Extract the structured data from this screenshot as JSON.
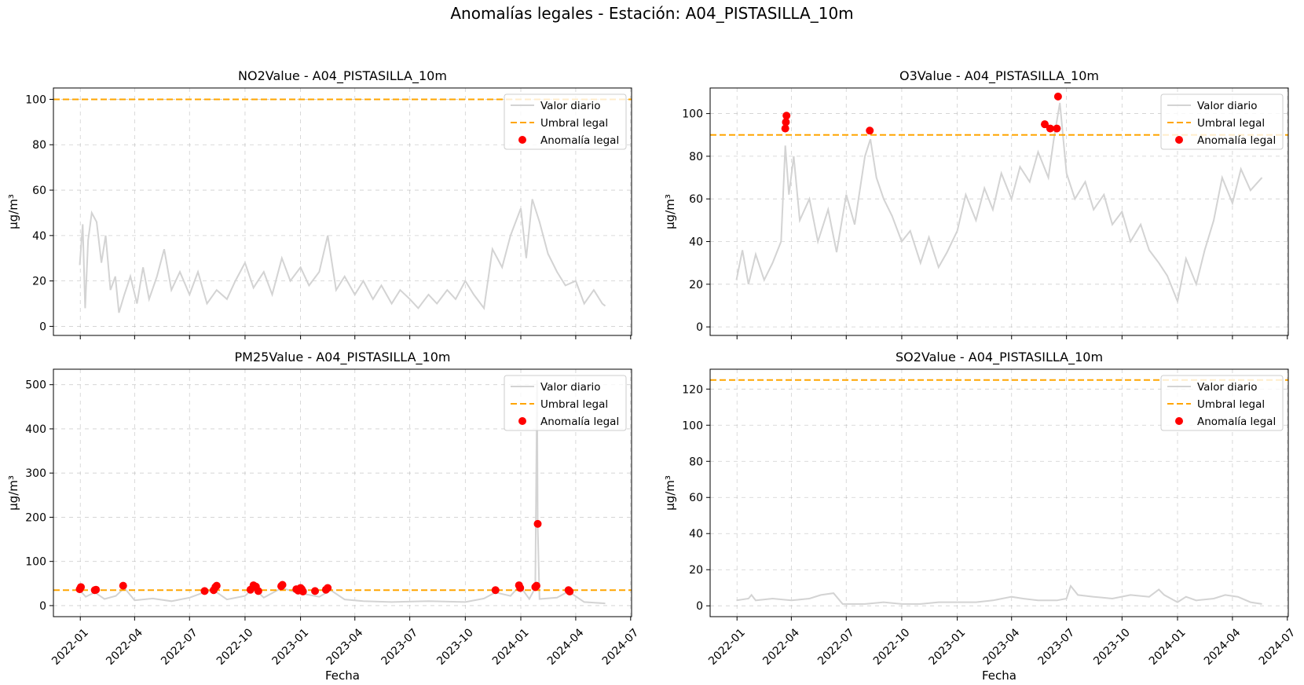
{
  "suptitle": "Anomalías legales - Estación: A04_PISTASILLA_10m",
  "colors": {
    "daily": "#d3d3d3",
    "threshold": "#ffa500",
    "anomaly": "#ff0000"
  },
  "legend": {
    "daily": "Valor diario",
    "threshold": "Umbral legal",
    "anomaly": "Anomalía legal"
  },
  "chart_data": [
    {
      "type": "line",
      "title": "NO2Value - A04_PISTASILLA_10m",
      "xlabel": "",
      "ylabel": "µg/m³",
      "x_range": [
        "2021-12-31",
        "2024-05-20"
      ],
      "ylim": [
        -4,
        105
      ],
      "yticks": [
        0,
        20,
        40,
        60,
        80,
        100
      ],
      "xticks": [
        "2022-01",
        "2022-04",
        "2022-07",
        "2022-10",
        "2023-01",
        "2023-04",
        "2023-07",
        "2023-10",
        "2024-01",
        "2024-04",
        "2024-07"
      ],
      "show_xtick_labels": false,
      "threshold": 100,
      "legend_position": "top-right",
      "grid": true,
      "series_daily": [
        [
          "2021-12-31",
          27
        ],
        [
          "2022-01-05",
          45
        ],
        [
          "2022-01-09",
          8
        ],
        [
          "2022-01-14",
          38
        ],
        [
          "2022-01-20",
          50
        ],
        [
          "2022-01-28",
          46
        ],
        [
          "2022-02-05",
          28
        ],
        [
          "2022-02-12",
          40
        ],
        [
          "2022-02-20",
          16
        ],
        [
          "2022-02-28",
          22
        ],
        [
          "2022-03-06",
          6
        ],
        [
          "2022-03-15",
          14
        ],
        [
          "2022-03-25",
          22
        ],
        [
          "2022-04-05",
          10
        ],
        [
          "2022-04-15",
          26
        ],
        [
          "2022-04-25",
          12
        ],
        [
          "2022-05-08",
          22
        ],
        [
          "2022-05-20",
          34
        ],
        [
          "2022-06-01",
          16
        ],
        [
          "2022-06-15",
          24
        ],
        [
          "2022-07-01",
          14
        ],
        [
          "2022-07-15",
          24
        ],
        [
          "2022-07-30",
          10
        ],
        [
          "2022-08-15",
          16
        ],
        [
          "2022-09-01",
          12
        ],
        [
          "2022-09-15",
          20
        ],
        [
          "2022-10-01",
          28
        ],
        [
          "2022-10-15",
          17
        ],
        [
          "2022-11-01",
          24
        ],
        [
          "2022-11-15",
          14
        ],
        [
          "2022-12-01",
          30
        ],
        [
          "2022-12-15",
          20
        ],
        [
          "2023-01-01",
          26
        ],
        [
          "2023-01-15",
          18
        ],
        [
          "2023-02-01",
          24
        ],
        [
          "2023-02-15",
          40
        ],
        [
          "2023-03-01",
          16
        ],
        [
          "2023-03-15",
          22
        ],
        [
          "2023-04-01",
          14
        ],
        [
          "2023-04-15",
          20
        ],
        [
          "2023-05-01",
          12
        ],
        [
          "2023-05-15",
          18
        ],
        [
          "2023-06-01",
          10
        ],
        [
          "2023-06-15",
          16
        ],
        [
          "2023-07-01",
          12
        ],
        [
          "2023-07-15",
          8
        ],
        [
          "2023-08-01",
          14
        ],
        [
          "2023-08-15",
          10
        ],
        [
          "2023-09-01",
          16
        ],
        [
          "2023-09-15",
          12
        ],
        [
          "2023-10-01",
          20
        ],
        [
          "2023-10-15",
          14
        ],
        [
          "2023-11-01",
          8
        ],
        [
          "2023-11-15",
          34
        ],
        [
          "2023-12-01",
          26
        ],
        [
          "2023-12-15",
          40
        ],
        [
          "2024-01-01",
          52
        ],
        [
          "2024-01-10",
          30
        ],
        [
          "2024-01-20",
          56
        ],
        [
          "2024-02-01",
          46
        ],
        [
          "2024-02-15",
          32
        ],
        [
          "2024-03-01",
          24
        ],
        [
          "2024-03-15",
          18
        ],
        [
          "2024-04-01",
          20
        ],
        [
          "2024-04-15",
          10
        ],
        [
          "2024-05-01",
          16
        ],
        [
          "2024-05-15",
          10
        ],
        [
          "2024-05-20",
          9
        ]
      ],
      "anomalies": []
    },
    {
      "type": "line",
      "title": "O3Value - A04_PISTASILLA_10m",
      "xlabel": "",
      "ylabel": "µg/m³",
      "x_range": [
        "2021-12-31",
        "2024-05-20"
      ],
      "ylim": [
        -4,
        112
      ],
      "yticks": [
        0,
        20,
        40,
        60,
        80,
        100
      ],
      "xticks": [
        "2022-01",
        "2022-04",
        "2022-07",
        "2022-10",
        "2023-01",
        "2023-04",
        "2023-07",
        "2023-10",
        "2024-01",
        "2024-04",
        "2024-07"
      ],
      "show_xtick_labels": false,
      "threshold": 90,
      "legend_position": "top-right",
      "grid": true,
      "series_daily": [
        [
          "2021-12-31",
          22
        ],
        [
          "2022-01-10",
          36
        ],
        [
          "2022-01-20",
          20
        ],
        [
          "2022-02-01",
          34
        ],
        [
          "2022-02-15",
          22
        ],
        [
          "2022-03-01",
          30
        ],
        [
          "2022-03-15",
          40
        ],
        [
          "2022-03-22",
          85
        ],
        [
          "2022-03-28",
          62
        ],
        [
          "2022-04-05",
          80
        ],
        [
          "2022-04-15",
          50
        ],
        [
          "2022-05-01",
          60
        ],
        [
          "2022-05-15",
          40
        ],
        [
          "2022-06-01",
          55
        ],
        [
          "2022-06-15",
          35
        ],
        [
          "2022-07-01",
          62
        ],
        [
          "2022-07-15",
          48
        ],
        [
          "2022-08-01",
          80
        ],
        [
          "2022-08-10",
          88
        ],
        [
          "2022-08-20",
          70
        ],
        [
          "2022-09-01",
          60
        ],
        [
          "2022-09-15",
          52
        ],
        [
          "2022-10-01",
          40
        ],
        [
          "2022-10-15",
          45
        ],
        [
          "2022-11-01",
          30
        ],
        [
          "2022-11-15",
          42
        ],
        [
          "2022-12-01",
          28
        ],
        [
          "2022-12-15",
          35
        ],
        [
          "2023-01-01",
          45
        ],
        [
          "2023-01-15",
          62
        ],
        [
          "2023-02-01",
          50
        ],
        [
          "2023-02-15",
          65
        ],
        [
          "2023-03-01",
          55
        ],
        [
          "2023-03-15",
          72
        ],
        [
          "2023-04-01",
          60
        ],
        [
          "2023-04-15",
          75
        ],
        [
          "2023-05-01",
          68
        ],
        [
          "2023-05-15",
          82
        ],
        [
          "2023-06-01",
          70
        ],
        [
          "2023-06-10",
          88
        ],
        [
          "2023-06-20",
          105
        ],
        [
          "2023-07-01",
          72
        ],
        [
          "2023-07-15",
          60
        ],
        [
          "2023-08-01",
          68
        ],
        [
          "2023-08-15",
          55
        ],
        [
          "2023-09-01",
          62
        ],
        [
          "2023-09-15",
          48
        ],
        [
          "2023-10-01",
          54
        ],
        [
          "2023-10-15",
          40
        ],
        [
          "2023-11-01",
          48
        ],
        [
          "2023-11-15",
          36
        ],
        [
          "2023-12-01",
          30
        ],
        [
          "2023-12-15",
          24
        ],
        [
          "2024-01-01",
          12
        ],
        [
          "2024-01-15",
          32
        ],
        [
          "2024-02-01",
          20
        ],
        [
          "2024-02-15",
          36
        ],
        [
          "2024-03-01",
          50
        ],
        [
          "2024-03-15",
          70
        ],
        [
          "2024-04-01",
          58
        ],
        [
          "2024-04-15",
          74
        ],
        [
          "2024-05-01",
          64
        ],
        [
          "2024-05-20",
          70
        ]
      ],
      "anomalies": [
        [
          "2022-03-22",
          93
        ],
        [
          "2022-03-23",
          96
        ],
        [
          "2022-03-24",
          99
        ],
        [
          "2022-08-09",
          92
        ],
        [
          "2023-05-26",
          95
        ],
        [
          "2023-06-04",
          93
        ],
        [
          "2023-06-15",
          93
        ],
        [
          "2023-06-17",
          108
        ]
      ]
    },
    {
      "type": "line",
      "title": "PM25Value - A04_PISTASILLA_10m",
      "xlabel": "Fecha",
      "ylabel": "µg/m³",
      "x_range": [
        "2021-12-31",
        "2024-05-20"
      ],
      "ylim": [
        -25,
        535
      ],
      "yticks": [
        0,
        100,
        200,
        300,
        400,
        500
      ],
      "xticks": [
        "2022-01",
        "2022-04",
        "2022-07",
        "2022-10",
        "2023-01",
        "2023-04",
        "2023-07",
        "2023-10",
        "2024-01",
        "2024-04",
        "2024-07"
      ],
      "show_xtick_labels": true,
      "threshold": 35,
      "legend_position": "top-right",
      "grid": true,
      "series_daily": [
        [
          "2021-12-31",
          35
        ],
        [
          "2022-01-10",
          20
        ],
        [
          "2022-01-25",
          30
        ],
        [
          "2022-02-10",
          15
        ],
        [
          "2022-03-01",
          22
        ],
        [
          "2022-03-15",
          40
        ],
        [
          "2022-04-01",
          12
        ],
        [
          "2022-05-01",
          16
        ],
        [
          "2022-06-01",
          10
        ],
        [
          "2022-07-01",
          18
        ],
        [
          "2022-07-25",
          30
        ],
        [
          "2022-08-10",
          35
        ],
        [
          "2022-09-01",
          14
        ],
        [
          "2022-10-01",
          22
        ],
        [
          "2022-10-15",
          40
        ],
        [
          "2022-11-01",
          18
        ],
        [
          "2022-12-01",
          40
        ],
        [
          "2022-12-20",
          32
        ],
        [
          "2023-01-01",
          28
        ],
        [
          "2023-02-01",
          20
        ],
        [
          "2023-02-20",
          35
        ],
        [
          "2023-03-15",
          14
        ],
        [
          "2023-04-15",
          10
        ],
        [
          "2023-06-01",
          8
        ],
        [
          "2023-08-01",
          10
        ],
        [
          "2023-10-01",
          8
        ],
        [
          "2023-11-01",
          16
        ],
        [
          "2023-11-20",
          30
        ],
        [
          "2023-12-15",
          22
        ],
        [
          "2023-12-30",
          45
        ],
        [
          "2024-01-15",
          15
        ],
        [
          "2024-01-25",
          40
        ],
        [
          "2024-01-28",
          510
        ],
        [
          "2024-01-29",
          180
        ],
        [
          "2024-02-01",
          15
        ],
        [
          "2024-03-01",
          18
        ],
        [
          "2024-03-20",
          32
        ],
        [
          "2024-04-15",
          8
        ],
        [
          "2024-05-20",
          5
        ]
      ],
      "anomalies": [
        [
          "2021-12-31",
          37
        ],
        [
          "2022-01-02",
          42
        ],
        [
          "2022-01-25",
          35
        ],
        [
          "2022-01-27",
          36
        ],
        [
          "2022-03-13",
          45
        ],
        [
          "2022-07-26",
          33
        ],
        [
          "2022-08-10",
          35
        ],
        [
          "2022-08-13",
          42
        ],
        [
          "2022-08-15",
          45
        ],
        [
          "2022-10-10",
          36
        ],
        [
          "2022-10-15",
          46
        ],
        [
          "2022-10-19",
          43
        ],
        [
          "2022-10-23",
          33
        ],
        [
          "2022-11-30",
          44
        ],
        [
          "2022-12-02",
          47
        ],
        [
          "2022-12-25",
          37
        ],
        [
          "2022-12-28",
          34
        ],
        [
          "2023-01-01",
          40
        ],
        [
          "2023-01-03",
          37
        ],
        [
          "2023-01-05",
          32
        ],
        [
          "2023-01-25",
          33
        ],
        [
          "2023-02-12",
          36
        ],
        [
          "2023-02-15",
          40
        ],
        [
          "2023-11-20",
          35
        ],
        [
          "2023-12-29",
          46
        ],
        [
          "2023-12-31",
          40
        ],
        [
          "2024-01-25",
          42
        ],
        [
          "2024-01-27",
          45
        ],
        [
          "2024-01-29",
          185
        ],
        [
          "2024-03-20",
          35
        ],
        [
          "2024-03-22",
          32
        ]
      ]
    },
    {
      "type": "line",
      "title": "SO2Value - A04_PISTASILLA_10m",
      "xlabel": "Fecha",
      "ylabel": "µg/m³",
      "x_range": [
        "2021-12-31",
        "2024-05-20"
      ],
      "ylim": [
        -6,
        131
      ],
      "yticks": [
        0,
        20,
        40,
        60,
        80,
        100,
        120
      ],
      "xticks": [
        "2022-01",
        "2022-04",
        "2022-07",
        "2022-10",
        "2023-01",
        "2023-04",
        "2023-07",
        "2023-10",
        "2024-01",
        "2024-04",
        "2024-07"
      ],
      "show_xtick_labels": true,
      "threshold": 125,
      "legend_position": "top-right",
      "grid": true,
      "series_daily": [
        [
          "2021-12-31",
          3
        ],
        [
          "2022-01-20",
          4
        ],
        [
          "2022-01-25",
          6
        ],
        [
          "2022-02-01",
          3
        ],
        [
          "2022-03-01",
          4
        ],
        [
          "2022-04-01",
          3
        ],
        [
          "2022-05-01",
          4
        ],
        [
          "2022-05-20",
          6
        ],
        [
          "2022-06-10",
          7
        ],
        [
          "2022-06-25",
          1
        ],
        [
          "2022-08-01",
          1
        ],
        [
          "2022-09-01",
          2
        ],
        [
          "2022-10-01",
          1
        ],
        [
          "2022-11-01",
          1
        ],
        [
          "2022-12-01",
          2
        ],
        [
          "2023-01-01",
          2
        ],
        [
          "2023-02-01",
          2
        ],
        [
          "2023-03-01",
          3
        ],
        [
          "2023-04-01",
          5
        ],
        [
          "2023-04-20",
          4
        ],
        [
          "2023-05-15",
          3
        ],
        [
          "2023-06-15",
          3
        ],
        [
          "2023-07-01",
          4
        ],
        [
          "2023-07-08",
          11
        ],
        [
          "2023-07-20",
          6
        ],
        [
          "2023-08-15",
          5
        ],
        [
          "2023-09-15",
          4
        ],
        [
          "2023-10-15",
          6
        ],
        [
          "2023-11-15",
          5
        ],
        [
          "2023-12-01",
          9
        ],
        [
          "2023-12-10",
          6
        ],
        [
          "2024-01-01",
          2
        ],
        [
          "2024-01-15",
          5
        ],
        [
          "2024-02-01",
          3
        ],
        [
          "2024-03-01",
          4
        ],
        [
          "2024-03-20",
          6
        ],
        [
          "2024-04-10",
          5
        ],
        [
          "2024-05-01",
          2
        ],
        [
          "2024-05-20",
          1
        ]
      ],
      "anomalies": []
    }
  ]
}
